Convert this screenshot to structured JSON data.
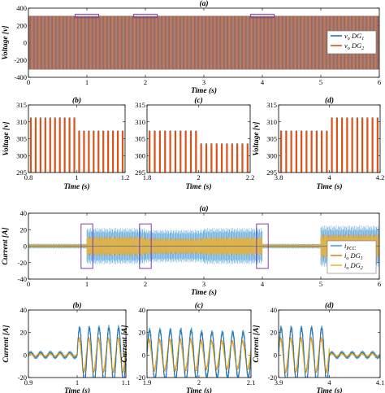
{
  "colors": {
    "vo_dg1": "#1f77b4",
    "vo_dg2": "#d95319",
    "i_pcc": "#4c9fd9",
    "io_dg1": "#e08a1e",
    "io_dg2": "#e9b83a",
    "i_dark": "#1a4f7a",
    "highlight": "#7a3fb0"
  },
  "chart_data": [
    {
      "id": "v_a",
      "type": "line",
      "title": "(a)",
      "xlabel": "Time (s)",
      "ylabel": "Voltage [v]",
      "xlim": [
        0,
        6
      ],
      "ylim": [
        -400,
        400
      ],
      "xticks": [
        0,
        1,
        2,
        3,
        4,
        5,
        6
      ],
      "yticks": [
        -400,
        -200,
        0,
        200,
        400
      ],
      "series": [
        {
          "name": "v_o DG_1",
          "amplitude": 311,
          "frequency_hz": 50
        },
        {
          "name": "v_o DG_2",
          "amplitude": 311,
          "frequency_hz": 50
        }
      ],
      "highlight_x": [
        [
          0.8,
          1.2
        ],
        [
          1.8,
          2.2
        ],
        [
          3.8,
          4.2
        ]
      ],
      "legend": {
        "placement": "right",
        "entries": [
          {
            "text": "v",
            "sub": "o",
            "rest": " DG",
            "idx": "1"
          },
          {
            "text": "v",
            "sub": "o",
            "rest": " DG",
            "idx": "2"
          }
        ]
      }
    },
    {
      "id": "v_b",
      "type": "line",
      "title": "(b)",
      "xlabel": "Time (s)",
      "ylabel": "Voltage [v]",
      "xlim": [
        0.8,
        1.2
      ],
      "ylim": [
        295,
        315
      ],
      "xticks": [
        "0.8",
        "1",
        "1.2"
      ],
      "yticks": [
        295,
        300,
        305,
        310,
        315
      ],
      "peak_steps": [
        {
          "x_end": 1.0,
          "peak": 311.2
        },
        {
          "x_end": 1.2,
          "peak": 307.3
        }
      ]
    },
    {
      "id": "v_c",
      "type": "line",
      "title": "(c)",
      "xlabel": "Time (s)",
      "ylabel": "",
      "xlim": [
        1.8,
        2.2
      ],
      "ylim": [
        295,
        315
      ],
      "xticks": [
        "1.8",
        "2",
        "2.2"
      ],
      "yticks": [
        295,
        300,
        305,
        310,
        315
      ],
      "peak_steps": [
        {
          "x_end": 2.0,
          "peak": 307.3
        },
        {
          "x_end": 2.2,
          "peak": 303.5
        }
      ]
    },
    {
      "id": "v_d",
      "type": "line",
      "title": "(d)",
      "xlabel": "Time (s)",
      "ylabel": "Voltage [v]",
      "xlim": [
        3.8,
        4.2
      ],
      "ylim": [
        295,
        315
      ],
      "xticks": [
        "3.8",
        "4",
        "4.2"
      ],
      "yticks": [
        295,
        300,
        305,
        310,
        315
      ],
      "peak_steps": [
        {
          "x_end": 4.0,
          "peak": 307.3
        },
        {
          "x_end": 4.2,
          "peak": 311.2
        }
      ]
    },
    {
      "id": "i_a",
      "type": "line",
      "title": "(a)",
      "xlabel": "Time (s)",
      "ylabel": "Current [A]",
      "xlim": [
        0,
        6
      ],
      "ylim": [
        -40,
        40
      ],
      "xticks": [
        0,
        1,
        2,
        3,
        4,
        5,
        6
      ],
      "yticks": [
        -40,
        -20,
        0,
        20,
        40
      ],
      "envelopes": [
        {
          "from": 0,
          "to": 1,
          "pcc": 3,
          "dg1": 2,
          "dg2": 2
        },
        {
          "from": 1,
          "to": 2,
          "pcc": 22,
          "dg1": 12,
          "dg2": 11
        },
        {
          "from": 2,
          "to": 3,
          "pcc": 20,
          "dg1": 10,
          "dg2": 9
        },
        {
          "from": 3,
          "to": 4,
          "pcc": 22,
          "dg1": 11,
          "dg2": 11
        },
        {
          "from": 4,
          "to": 5,
          "pcc": 3,
          "dg1": 2,
          "dg2": 2
        },
        {
          "from": 5,
          "to": 6,
          "pcc": 25,
          "dg1": 15,
          "dg2": 13
        }
      ],
      "highlight_x": [
        [
          0.9,
          1.1
        ],
        [
          1.9,
          2.1
        ],
        [
          3.9,
          4.1
        ]
      ],
      "legend": {
        "placement": "right",
        "entries": [
          {
            "text": "i",
            "sub": "PCC",
            "rest": "",
            "idx": ""
          },
          {
            "text": "i",
            "sub": "o",
            "rest": " DG",
            "idx": "1"
          },
          {
            "text": "i",
            "sub": "o",
            "rest": " DG",
            "idx": "2"
          }
        ]
      }
    },
    {
      "id": "i_b",
      "type": "line",
      "title": "(b)",
      "xlabel": "Time (s)",
      "ylabel": "Current [A]",
      "xlim": [
        0.9,
        1.1
      ],
      "ylim": [
        -20,
        40
      ],
      "xticks": [
        "0.9",
        "1",
        "1.1"
      ],
      "yticks": [
        -20,
        0,
        20,
        40
      ],
      "segments": [
        {
          "from": 0.9,
          "to": 1.0,
          "amp": 2
        },
        {
          "from": 1.0,
          "to": 1.1,
          "amp": 24
        }
      ]
    },
    {
      "id": "i_c",
      "type": "line",
      "title": "(c)",
      "xlabel": "Time (s)",
      "ylabel": "Current [A]",
      "xlim": [
        1.9,
        2.1
      ],
      "ylim": [
        -20,
        40
      ],
      "xticks": [
        "1.9",
        "2",
        "2.1"
      ],
      "yticks": [
        -20,
        0,
        20,
        40
      ],
      "segments": [
        {
          "from": 1.9,
          "to": 2.0,
          "amp": 22
        },
        {
          "from": 2.0,
          "to": 2.1,
          "amp": 20
        }
      ]
    },
    {
      "id": "i_d",
      "type": "line",
      "title": "(d)",
      "xlabel": "Time (s)",
      "ylabel": "Current [A]",
      "xlim": [
        3.9,
        4.1
      ],
      "ylim": [
        -20,
        40
      ],
      "xticks": [
        "3.9",
        "4",
        "4.1"
      ],
      "yticks": [
        -20,
        0,
        20,
        40
      ],
      "segments": [
        {
          "from": 3.9,
          "to": 4.0,
          "amp": 24
        },
        {
          "from": 4.0,
          "to": 4.1,
          "amp": 2
        }
      ]
    }
  ]
}
